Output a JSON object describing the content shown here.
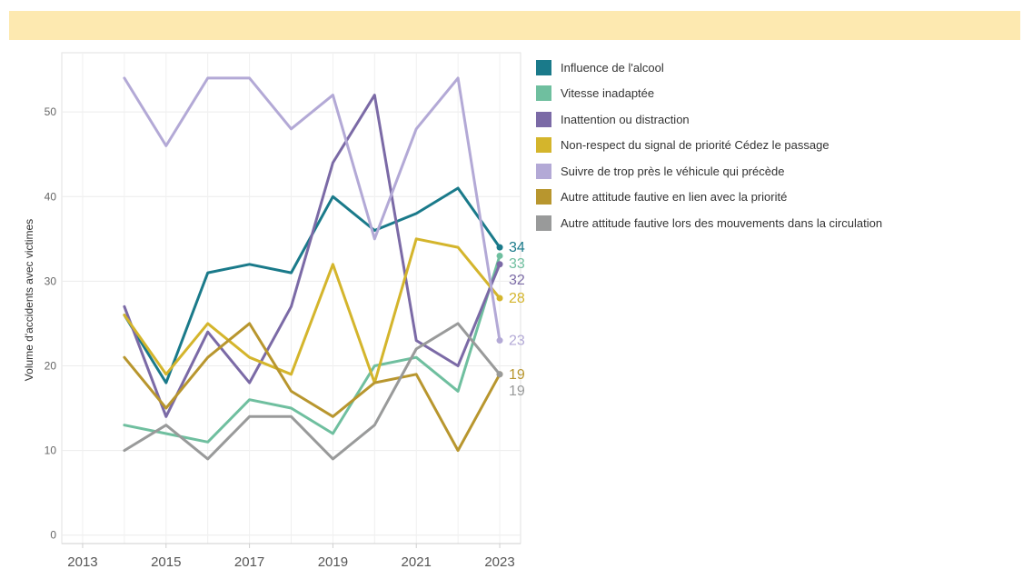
{
  "chart_data": {
    "type": "line",
    "title": "",
    "xlabel": "",
    "ylabel": "Volume d'accidents avec victimes",
    "x": [
      2014,
      2015,
      2016,
      2017,
      2018,
      2019,
      2020,
      2021,
      2022,
      2023
    ],
    "xlim": [
      2012.5,
      2023.5
    ],
    "x_ticks": [
      2013,
      2015,
      2017,
      2019,
      2021,
      2023
    ],
    "ylim": [
      -1,
      57
    ],
    "y_ticks": [
      0,
      10,
      20,
      30,
      40,
      50
    ],
    "grid": true,
    "legend_position": "right",
    "series": [
      {
        "name": "Influence de l'alcool",
        "color": "#1a7a8a",
        "values": [
          26,
          18,
          31,
          32,
          31,
          40,
          36,
          38,
          41,
          34
        ],
        "end_label": "34"
      },
      {
        "name": "Vitesse inadaptée",
        "color": "#6fbf9f",
        "values": [
          13,
          12,
          11,
          16,
          15,
          12,
          20,
          21,
          17,
          33
        ],
        "end_label": "33"
      },
      {
        "name": "Inattention ou distraction",
        "color": "#7b6aa6",
        "values": [
          27,
          14,
          24,
          18,
          27,
          44,
          52,
          23,
          20,
          32
        ],
        "end_label": "32"
      },
      {
        "name": "Non-respect du signal de priorité Cédez le passage",
        "color": "#d4b52c",
        "values": [
          26,
          19,
          25,
          21,
          19,
          32,
          18,
          35,
          34,
          28
        ],
        "end_label": "28"
      },
      {
        "name": "Suivre de trop près le véhicule qui précède",
        "color": "#b3a9d6",
        "values": [
          54,
          46,
          54,
          54,
          48,
          52,
          35,
          48,
          54,
          23
        ],
        "end_label": "23"
      },
      {
        "name": "Autre attitude fautive en lien avec la priorité",
        "color": "#b8962e",
        "values": [
          21,
          15,
          21,
          25,
          17,
          14,
          18,
          19,
          10,
          19
        ],
        "end_label": "19"
      },
      {
        "name": "Autre attitude fautive lors des mouvements dans la circulation",
        "color": "#999a9a",
        "values": [
          10,
          13,
          9,
          14,
          14,
          9,
          13,
          22,
          25,
          19
        ],
        "end_label": "19"
      }
    ]
  }
}
